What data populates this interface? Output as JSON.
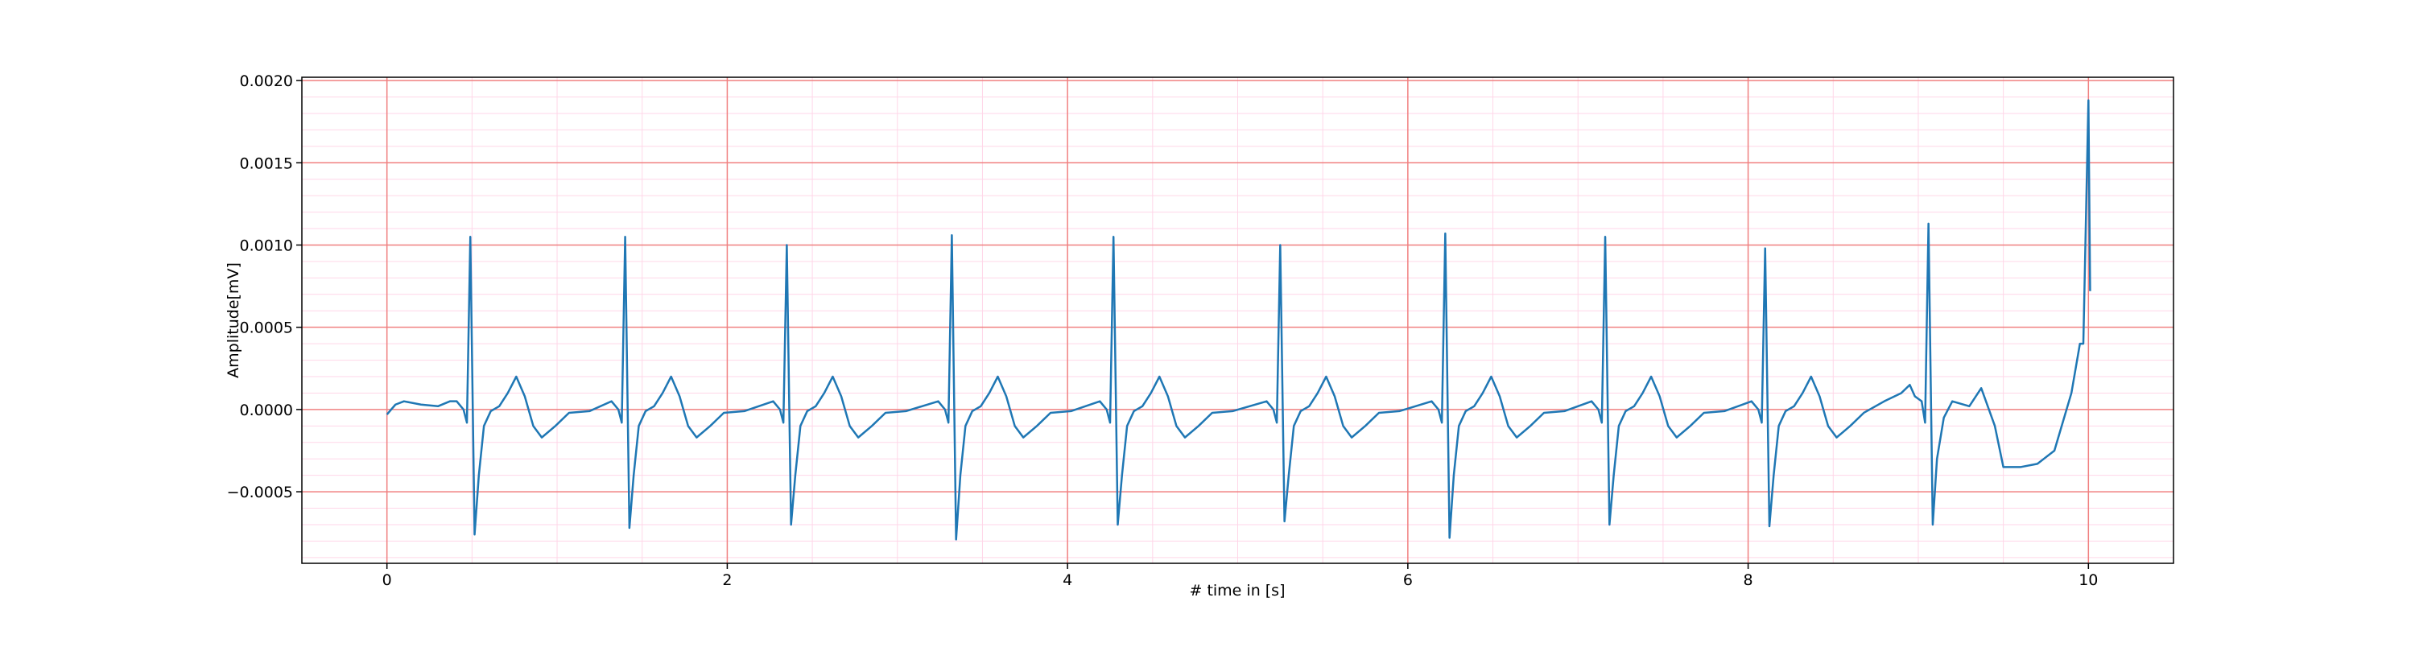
{
  "chart_data": {
    "type": "line",
    "xlabel": "# time in [s]",
    "ylabel": "Amplitude[mV]",
    "xlim": [
      -0.5,
      10.5
    ],
    "ylim": [
      -0.000935,
      0.00202
    ],
    "xticks": [
      0,
      2,
      4,
      6,
      8,
      10
    ],
    "yticks": [
      {
        "value": -0.0005,
        "label": "−0.0005"
      },
      {
        "value": 0,
        "label": "0.0000"
      },
      {
        "value": 0.0005,
        "label": "0.0005"
      },
      {
        "value": 0.001,
        "label": "0.0010"
      },
      {
        "value": 0.0015,
        "label": "0.0015"
      },
      {
        "value": 0.002,
        "label": "0.0020"
      }
    ],
    "minor_xticks": [
      0.5,
      1,
      1.5,
      2.5,
      3,
      3.5,
      4.5,
      5,
      5.5,
      6.5,
      7,
      7.5,
      8.5,
      9,
      9.5
    ],
    "minor_yticks": [
      -0.0009,
      -0.0008,
      -0.0007,
      -0.0006,
      -0.0004,
      -0.0003,
      -0.0002,
      -0.0001,
      0.0001,
      0.0002,
      0.0003,
      0.0004,
      0.0006,
      0.0007,
      0.0008,
      0.0009,
      0.0011,
      0.0012,
      0.0013,
      0.0014,
      0.0016,
      0.0017,
      0.0018,
      0.0019
    ],
    "grid": true,
    "grid_color": "#f08080",
    "minor_grid_color": "#ffd6e8",
    "series": [
      {
        "color": "#1f77b4",
        "x": [
          0,
          0.05,
          0.1,
          0.2,
          0.3,
          0.37,
          0.41,
          0.45,
          0.47,
          0.49,
          0.515,
          0.54,
          0.57,
          0.61,
          0.66,
          0.71,
          0.76,
          0.81,
          0.86,
          0.91,
          0.99,
          1.07,
          1.19,
          1.32,
          1.36,
          1.38,
          1.4,
          1.425,
          1.45,
          1.48,
          1.52,
          1.57,
          1.62,
          1.67,
          1.72,
          1.77,
          1.82,
          1.9,
          1.98,
          2.1,
          2.27,
          2.31,
          2.33,
          2.35,
          2.375,
          2.4,
          2.43,
          2.47,
          2.52,
          2.57,
          2.62,
          2.67,
          2.72,
          2.77,
          2.85,
          2.93,
          3.05,
          3.24,
          3.28,
          3.3,
          3.32,
          3.345,
          3.37,
          3.4,
          3.44,
          3.49,
          3.54,
          3.59,
          3.64,
          3.69,
          3.74,
          3.82,
          3.9,
          4.02,
          4.19,
          4.23,
          4.25,
          4.27,
          4.295,
          4.32,
          4.35,
          4.39,
          4.44,
          4.49,
          4.54,
          4.59,
          4.64,
          4.69,
          4.77,
          4.85,
          4.97,
          5.17,
          5.21,
          5.23,
          5.25,
          5.275,
          5.3,
          5.33,
          5.37,
          5.42,
          5.47,
          5.52,
          5.57,
          5.62,
          5.67,
          5.75,
          5.83,
          5.95,
          6.14,
          6.18,
          6.2,
          6.22,
          6.245,
          6.27,
          6.3,
          6.34,
          6.39,
          6.44,
          6.49,
          6.54,
          6.59,
          6.64,
          6.72,
          6.8,
          6.92,
          7.08,
          7.12,
          7.14,
          7.16,
          7.185,
          7.21,
          7.24,
          7.28,
          7.33,
          7.38,
          7.43,
          7.48,
          7.53,
          7.58,
          7.66,
          7.74,
          7.86,
          8.02,
          8.06,
          8.08,
          8.1,
          8.125,
          8.15,
          8.18,
          8.22,
          8.27,
          8.32,
          8.37,
          8.42,
          8.47,
          8.52,
          8.6,
          8.68,
          8.8,
          8.9,
          8.95,
          8.98,
          9.02,
          9.04,
          9.06,
          9.085,
          9.11,
          9.15,
          9.2,
          9.3,
          9.37,
          9.45,
          9.5,
          9.6,
          9.7,
          9.8,
          9.9,
          9.95,
          9.97,
          10.0,
          10.01
        ],
        "values": [
          -3e-05,
          3e-05,
          5e-05,
          3e-05,
          2e-05,
          5e-05,
          5e-05,
          0,
          -8e-05,
          0.00105,
          -0.00076,
          -0.0004,
          -0.0001,
          -1e-05,
          2e-05,
          0.0001,
          0.0002,
          8e-05,
          -0.0001,
          -0.00017,
          -0.0001,
          -2e-05,
          -1e-05,
          5e-05,
          0,
          -8e-05,
          0.00105,
          -0.00072,
          -0.0004,
          -0.0001,
          -1e-05,
          2e-05,
          0.0001,
          0.0002,
          8e-05,
          -0.0001,
          -0.00017,
          -0.0001,
          -2e-05,
          -1e-05,
          5e-05,
          0,
          -8e-05,
          0.001,
          -0.0007,
          -0.0004,
          -0.0001,
          -1e-05,
          2e-05,
          0.0001,
          0.0002,
          8e-05,
          -0.0001,
          -0.00017,
          -0.0001,
          -2e-05,
          -1e-05,
          5e-05,
          0,
          -8e-05,
          0.00106,
          -0.00079,
          -0.0004,
          -0.0001,
          -1e-05,
          2e-05,
          0.0001,
          0.0002,
          8e-05,
          -0.0001,
          -0.00017,
          -0.0001,
          -2e-05,
          -1e-05,
          5e-05,
          0,
          -8e-05,
          0.00105,
          -0.0007,
          -0.0004,
          -0.0001,
          -1e-05,
          2e-05,
          0.0001,
          0.0002,
          8e-05,
          -0.0001,
          -0.00017,
          -0.0001,
          -2e-05,
          -1e-05,
          5e-05,
          0,
          -8e-05,
          0.001,
          -0.00068,
          -0.0004,
          -0.0001,
          -1e-05,
          2e-05,
          0.0001,
          0.0002,
          8e-05,
          -0.0001,
          -0.00017,
          -0.0001,
          -2e-05,
          -1e-05,
          5e-05,
          0,
          -8e-05,
          0.00107,
          -0.00078,
          -0.0004,
          -0.0001,
          -1e-05,
          2e-05,
          0.0001,
          0.0002,
          8e-05,
          -0.0001,
          -0.00017,
          -0.0001,
          -2e-05,
          -1e-05,
          5e-05,
          0,
          -8e-05,
          0.00105,
          -0.0007,
          -0.0004,
          -0.0001,
          -1e-05,
          2e-05,
          0.0001,
          0.0002,
          8e-05,
          -0.0001,
          -0.00017,
          -0.0001,
          -2e-05,
          -1e-05,
          5e-05,
          0,
          -8e-05,
          0.00098,
          -0.00071,
          -0.0004,
          -0.0001,
          -1e-05,
          2e-05,
          0.0001,
          0.0002,
          8e-05,
          -0.0001,
          -0.00017,
          -0.0001,
          -2e-05,
          5e-05,
          0.0001,
          0.00015,
          8e-05,
          5e-05,
          -8e-05,
          0.00113,
          -0.0007,
          -0.0003,
          -5e-05,
          5e-05,
          2e-05,
          0.00013,
          -0.0001,
          -0.00035,
          -0.00035,
          -0.00033,
          -0.00025,
          0.0001,
          0.0004,
          0.0004,
          0.00188,
          0.00072
        ]
      }
    ]
  }
}
